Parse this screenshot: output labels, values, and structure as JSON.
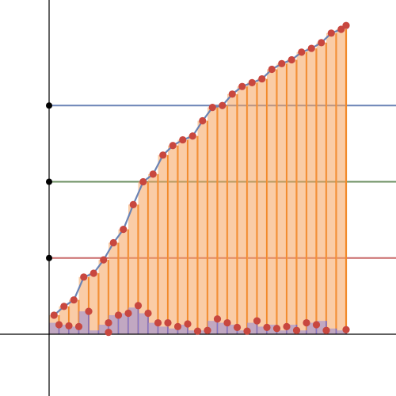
{
  "chart_data": {
    "type": "bar",
    "title": "",
    "xlabel": "",
    "ylabel": "",
    "grid": false,
    "legend": "none",
    "xlim": [
      -1,
      17
    ],
    "ylim": [
      -1.5,
      8.5
    ],
    "x": [
      0.0,
      0.5,
      1.0,
      1.5,
      2.0,
      2.5,
      3.0,
      3.5,
      4.0,
      4.5,
      5.0,
      5.5,
      6.0,
      6.5,
      7.0,
      7.5,
      8.0,
      8.5,
      9.0,
      9.5,
      10.0,
      10.5,
      11.0,
      11.5,
      12.0,
      12.5,
      13.0,
      13.5,
      14.0,
      14.5,
      15.0
    ],
    "series": [
      {
        "type": "bar",
        "color": "#f5a35c",
        "values": [
          0.0,
          0.5,
          0.73,
          0.9,
          1.5,
          1.6,
          1.95,
          2.4,
          2.75,
          3.4,
          4.0,
          4.2,
          4.7,
          4.95,
          5.1,
          5.2,
          5.6,
          5.95,
          6.0,
          6.3,
          6.5,
          6.6,
          6.7,
          6.95,
          7.1,
          7.2,
          7.4,
          7.5,
          7.65,
          7.9,
          8.0
        ]
      },
      {
        "type": "bar",
        "color": "#9b8fd6",
        "values": [
          0.0,
          0.3,
          0.25,
          0.2,
          0.6,
          0.1,
          0.25,
          0.5,
          0.55,
          0.7,
          0.55,
          0.3,
          0.2,
          0.15,
          0.25,
          0.1,
          0.1,
          0.35,
          0.3,
          0.25,
          0.1,
          0.3,
          0.2,
          0.25,
          0.1,
          0.25,
          0.1,
          0.3,
          0.35,
          0.15,
          0.1
        ]
      },
      {
        "type": "line",
        "color": "#6a83b5",
        "points": [
          {
            "x": 0.25,
            "y": 0.5
          },
          {
            "x": 0.75,
            "y": 0.73
          },
          {
            "x": 1.25,
            "y": 0.9
          },
          {
            "x": 1.75,
            "y": 1.5
          },
          {
            "x": 2.25,
            "y": 1.6
          },
          {
            "x": 2.75,
            "y": 1.95
          },
          {
            "x": 3.25,
            "y": 2.4
          },
          {
            "x": 3.75,
            "y": 2.75
          },
          {
            "x": 4.25,
            "y": 3.4
          },
          {
            "x": 4.75,
            "y": 4.0
          },
          {
            "x": 5.25,
            "y": 4.2
          },
          {
            "x": 5.75,
            "y": 4.7
          },
          {
            "x": 6.25,
            "y": 4.95
          },
          {
            "x": 6.75,
            "y": 5.1
          },
          {
            "x": 7.25,
            "y": 5.2
          },
          {
            "x": 7.75,
            "y": 5.6
          },
          {
            "x": 8.25,
            "y": 5.95
          },
          {
            "x": 8.75,
            "y": 6.0
          },
          {
            "x": 9.25,
            "y": 6.3
          },
          {
            "x": 9.75,
            "y": 6.5
          },
          {
            "x": 10.25,
            "y": 6.6
          },
          {
            "x": 10.75,
            "y": 6.7
          },
          {
            "x": 11.25,
            "y": 6.95
          },
          {
            "x": 11.75,
            "y": 7.1
          },
          {
            "x": 12.25,
            "y": 7.2
          },
          {
            "x": 12.75,
            "y": 7.4
          },
          {
            "x": 13.25,
            "y": 7.5
          },
          {
            "x": 13.75,
            "y": 7.65
          },
          {
            "x": 14.25,
            "y": 7.9
          },
          {
            "x": 14.75,
            "y": 8.0
          }
        ]
      },
      {
        "type": "scatter",
        "color": "#c8473f",
        "points": [
          {
            "x": 0.25,
            "y": 0.5
          },
          {
            "x": 0.75,
            "y": 0.73
          },
          {
            "x": 1.25,
            "y": 0.9
          },
          {
            "x": 1.75,
            "y": 1.5
          },
          {
            "x": 2.25,
            "y": 1.6
          },
          {
            "x": 2.75,
            "y": 1.95
          },
          {
            "x": 3.25,
            "y": 2.4
          },
          {
            "x": 3.75,
            "y": 2.75
          },
          {
            "x": 4.25,
            "y": 3.4
          },
          {
            "x": 4.75,
            "y": 4.0
          },
          {
            "x": 5.25,
            "y": 4.2
          },
          {
            "x": 5.75,
            "y": 4.7
          },
          {
            "x": 6.25,
            "y": 4.95
          },
          {
            "x": 6.75,
            "y": 5.1
          },
          {
            "x": 7.25,
            "y": 5.2
          },
          {
            "x": 7.75,
            "y": 5.6
          },
          {
            "x": 8.25,
            "y": 5.95
          },
          {
            "x": 8.75,
            "y": 6.0
          },
          {
            "x": 9.25,
            "y": 6.3
          },
          {
            "x": 9.75,
            "y": 6.5
          },
          {
            "x": 10.25,
            "y": 6.6
          },
          {
            "x": 10.75,
            "y": 6.7
          },
          {
            "x": 11.25,
            "y": 6.95
          },
          {
            "x": 11.75,
            "y": 7.1
          },
          {
            "x": 12.25,
            "y": 7.2
          },
          {
            "x": 12.75,
            "y": 7.4
          },
          {
            "x": 13.25,
            "y": 7.5
          },
          {
            "x": 13.75,
            "y": 7.65
          },
          {
            "x": 14.25,
            "y": 7.9
          },
          {
            "x": 14.75,
            "y": 8.0
          },
          {
            "x": 15.0,
            "y": 8.1
          },
          {
            "x": 0.5,
            "y": 0.25
          },
          {
            "x": 1.0,
            "y": 0.22
          },
          {
            "x": 1.5,
            "y": 0.2
          },
          {
            "x": 2.0,
            "y": 0.6
          },
          {
            "x": 3.0,
            "y": 0.3
          },
          {
            "x": 3.5,
            "y": 0.5
          },
          {
            "x": 4.0,
            "y": 0.55
          },
          {
            "x": 4.5,
            "y": 0.75
          },
          {
            "x": 5.0,
            "y": 0.55
          },
          {
            "x": 5.5,
            "y": 0.3
          },
          {
            "x": 6.0,
            "y": 0.3
          },
          {
            "x": 6.5,
            "y": 0.2
          },
          {
            "x": 7.0,
            "y": 0.27
          },
          {
            "x": 7.5,
            "y": 0.08
          },
          {
            "x": 8.0,
            "y": 0.1
          },
          {
            "x": 8.5,
            "y": 0.4
          },
          {
            "x": 9.0,
            "y": 0.3
          },
          {
            "x": 9.5,
            "y": 0.18
          },
          {
            "x": 10.0,
            "y": 0.08
          },
          {
            "x": 10.5,
            "y": 0.35
          },
          {
            "x": 11.0,
            "y": 0.18
          },
          {
            "x": 11.5,
            "y": 0.15
          },
          {
            "x": 12.0,
            "y": 0.2
          },
          {
            "x": 12.5,
            "y": 0.1
          },
          {
            "x": 13.0,
            "y": 0.3
          },
          {
            "x": 13.5,
            "y": 0.25
          },
          {
            "x": 14.0,
            "y": 0.1
          },
          {
            "x": 15.0,
            "y": 0.12
          },
          {
            "x": 3.0,
            "y": 0.05
          }
        ]
      }
    ],
    "reference_lines": [
      {
        "y": 2,
        "color": "#c96a6a"
      },
      {
        "y": 4,
        "color": "#6b8f62"
      },
      {
        "y": 6,
        "color": "#6a83b5"
      }
    ],
    "axis_points": [
      {
        "y": 2
      },
      {
        "y": 4
      },
      {
        "y": 6
      }
    ]
  }
}
